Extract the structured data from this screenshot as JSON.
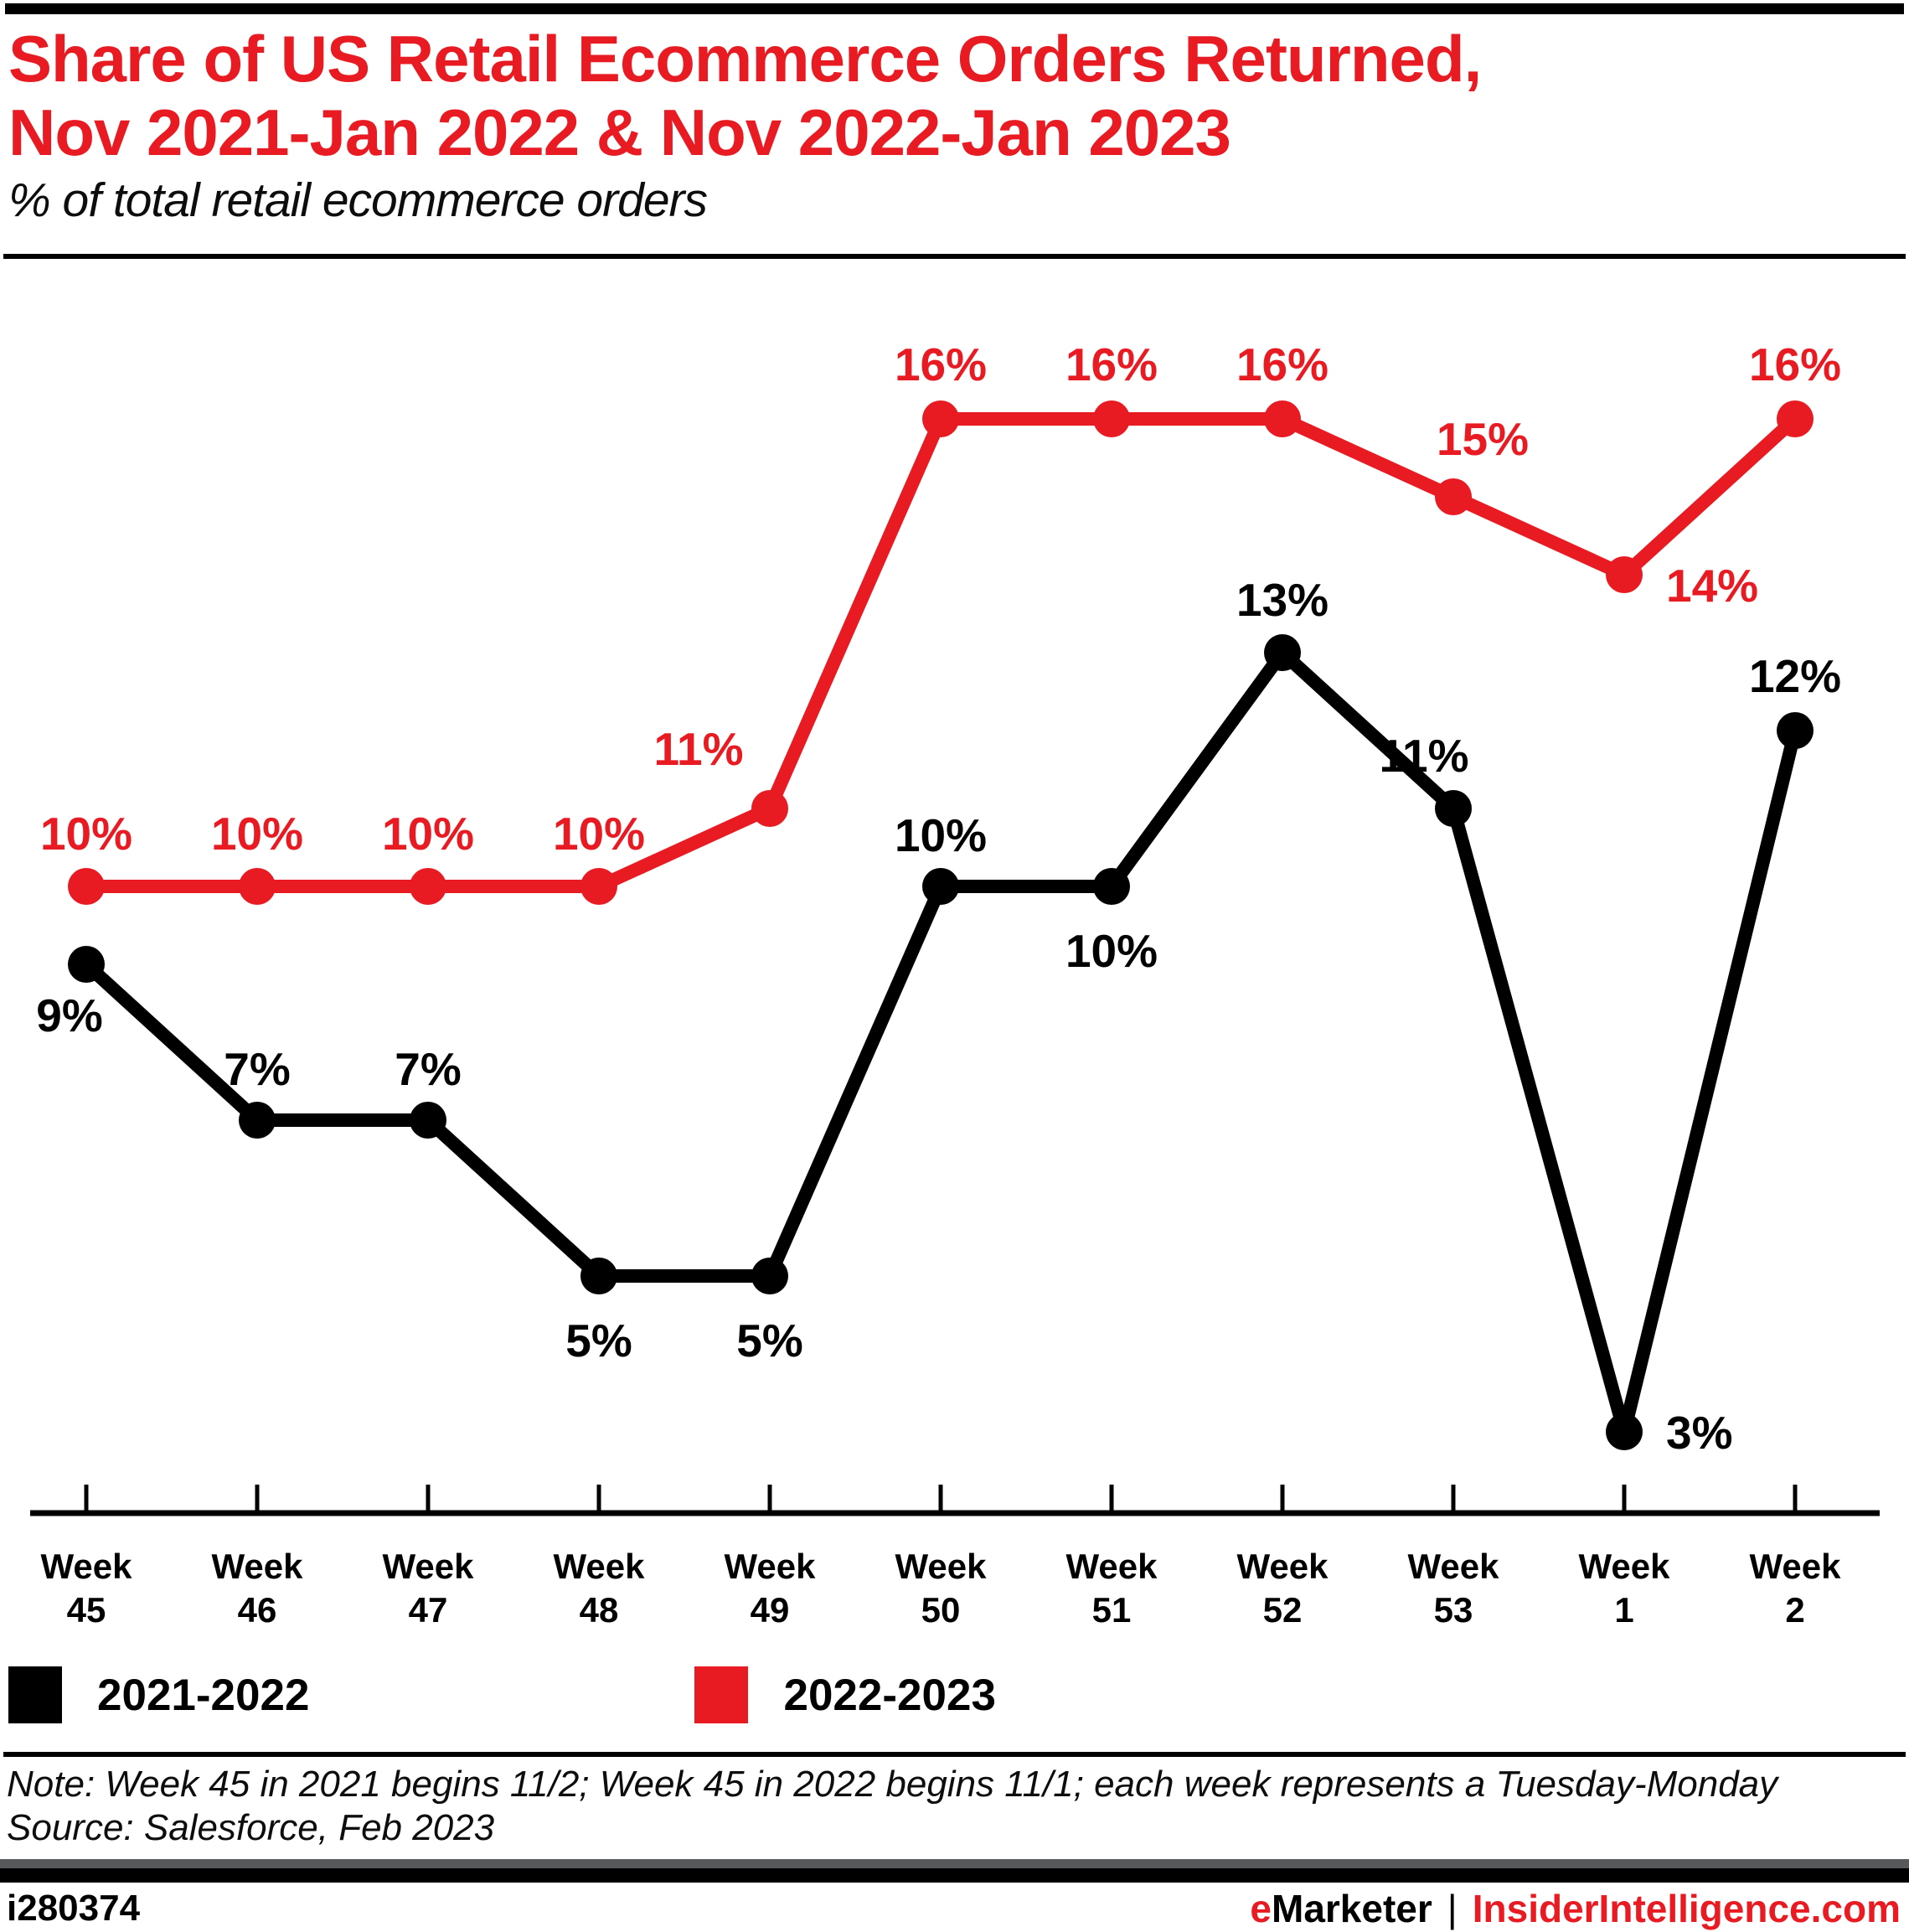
{
  "page": {
    "title_line1": "Share of US Retail Ecommerce Orders Returned,",
    "title_line2": "Nov 2021-Jan 2022 & Nov 2022-Jan 2023",
    "subtitle": "% of total retail ecommerce orders",
    "note": "Note: Week 45 in 2021 begins 11/2; Week 45 in 2022 begins 11/1; each week represents a Tuesday-Monday",
    "source": "Source: Salesforce, Feb 2023",
    "footer_id": "i280374",
    "brand": {
      "name_accent": "e",
      "name_rest": "Marketer",
      "separator": "|",
      "site": "InsiderIntelligence.com"
    }
  },
  "colors": {
    "accent_red": "#e81b23",
    "black": "#000000",
    "footer_gray": "#58595b"
  },
  "chart_data": {
    "type": "line",
    "title": "Share of US Retail Ecommerce Orders Returned, Nov 2021-Jan 2022 & Nov 2022-Jan 2023",
    "ylabel": "% of total retail ecommerce orders",
    "x_label_prefix": "Week",
    "categories": [
      "45",
      "46",
      "47",
      "48",
      "49",
      "50",
      "51",
      "52",
      "53",
      "1",
      "2"
    ],
    "unit": "%",
    "ylim": [
      0,
      18
    ],
    "grid": false,
    "legend_position": "bottom-left",
    "series": [
      {
        "name": "2021-2022",
        "color": "#000000",
        "values": [
          9,
          7,
          7,
          5,
          5,
          10,
          10,
          13,
          11,
          3,
          12
        ]
      },
      {
        "name": "2022-2023",
        "color": "#e81b23",
        "values": [
          10,
          10,
          10,
          10,
          11,
          16,
          16,
          16,
          15,
          14,
          16
        ]
      }
    ]
  }
}
